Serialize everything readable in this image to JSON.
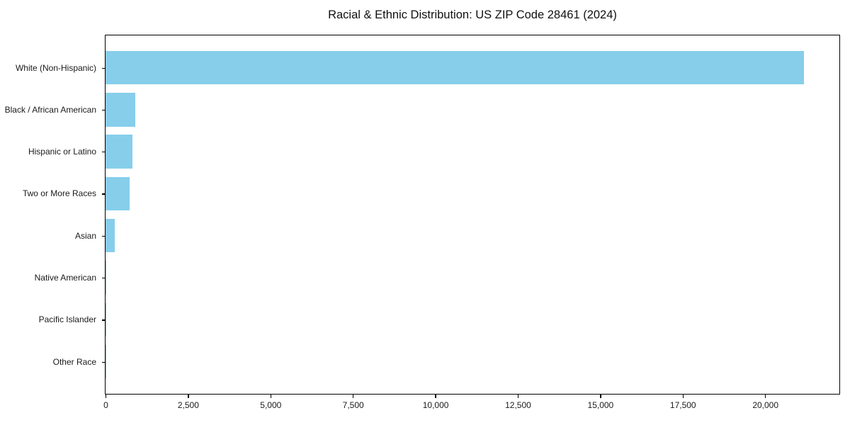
{
  "figure": {
    "background": "#ffffff",
    "spine_color": "#000000",
    "text_color": "#1a1a1a"
  },
  "chart_data": {
    "type": "bar",
    "orientation": "horizontal",
    "title": "Racial & Ethnic Distribution: US ZIP Code 28461 (2024)",
    "categories": [
      "White (Non-Hispanic)",
      "Black / African American",
      "Hispanic or Latino",
      "Two or More Races",
      "Asian",
      "Native American",
      "Pacific Islander",
      "Other Race"
    ],
    "values": [
      21170,
      900,
      820,
      720,
      285,
      25,
      10,
      5
    ],
    "bar_color": "#87CEEB",
    "xlabel": "",
    "ylabel": "",
    "xlim": [
      0,
      22230
    ],
    "x_ticks": [
      0,
      2500,
      5000,
      7500,
      10000,
      12500,
      15000,
      17500,
      20000
    ],
    "x_tick_labels": [
      "0",
      "2,500",
      "5,000",
      "7,500",
      "10,000",
      "12,500",
      "15,000",
      "17,500",
      "20,000"
    ],
    "grid": false,
    "legend": false
  }
}
